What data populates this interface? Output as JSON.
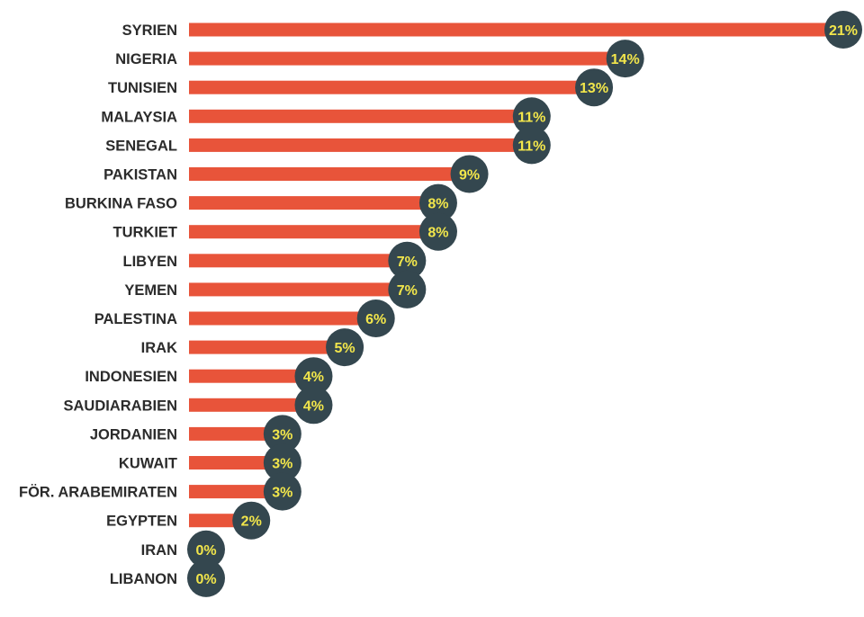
{
  "colors": {
    "bar": "#e8543a",
    "bubble": "#34474f",
    "value_text": "#f2e64b",
    "label_text": "#2b2b2b"
  },
  "chart_data": {
    "type": "bar",
    "orientation": "horizontal",
    "categories": [
      "SYRIEN",
      "NIGERIA",
      "TUNISIEN",
      "MALAYSIA",
      "SENEGAL",
      "PAKISTAN",
      "BURKINA FASO",
      "TURKIET",
      "LIBYEN",
      "YEMEN",
      "PALESTINA",
      "IRAK",
      "INDONESIEN",
      "SAUDIARABIEN",
      "JORDANIEN",
      "KUWAIT",
      "FÖR. ARABEMIRATEN",
      "EGYPTEN",
      "IRAN",
      "LIBANON"
    ],
    "values": [
      21,
      14,
      13,
      11,
      11,
      9,
      8,
      8,
      7,
      7,
      6,
      5,
      4,
      4,
      3,
      3,
      3,
      2,
      0,
      0
    ],
    "value_labels": [
      "21%",
      "14%",
      "13%",
      "11%",
      "11%",
      "9%",
      "8%",
      "8%",
      "7%",
      "7%",
      "6%",
      "5%",
      "4%",
      "4%",
      "3%",
      "3%",
      "3%",
      "2%",
      "0%",
      "0%"
    ],
    "unit": "%",
    "xlim": [
      0,
      21
    ],
    "grid": false,
    "legend": false
  }
}
